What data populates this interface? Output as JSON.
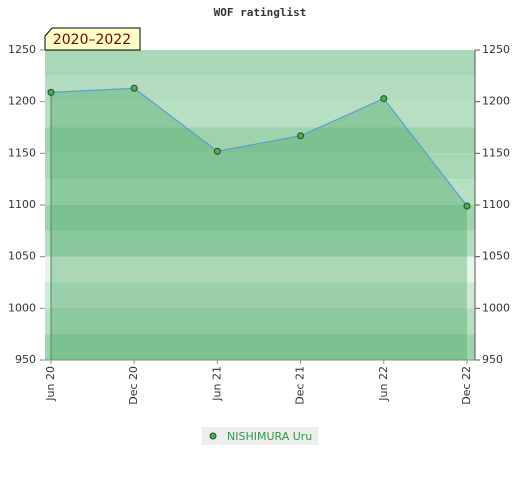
{
  "chart_data": {
    "type": "area",
    "title": "WOF ratinglist",
    "annotation": "2020–2022",
    "categories": [
      "Jun 20",
      "Dec 20",
      "Jun 21",
      "Dec 21",
      "Jun 22",
      "Dec 22"
    ],
    "series": [
      {
        "name": "NISHIMURA Uru",
        "color": "#5a9fd4",
        "marker_color": "#4caf50",
        "values": [
          1209,
          1213,
          1152,
          1167,
          1203,
          1099
        ]
      }
    ],
    "ylim": [
      950,
      1250
    ],
    "yticks": [
      950,
      1000,
      1050,
      1100,
      1150,
      1200,
      1250
    ],
    "y2lim": [
      950,
      1250
    ],
    "y2ticks": [
      950,
      1000,
      1050,
      1100,
      1150,
      1200,
      1250
    ],
    "legend": "bottom"
  }
}
